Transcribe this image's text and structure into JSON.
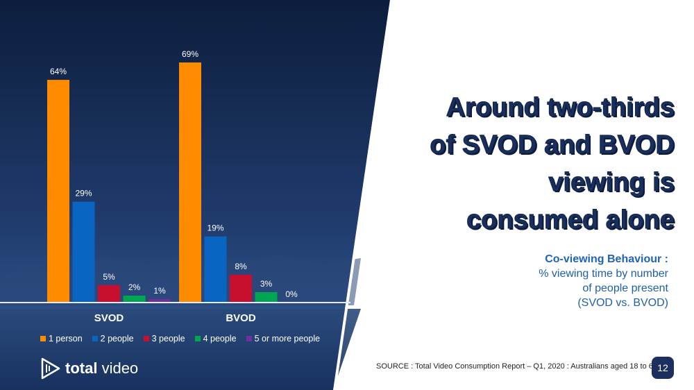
{
  "headline": {
    "lines": [
      "Around two-thirds",
      "of SVOD and BVOD",
      "viewing is",
      "consumed alone"
    ]
  },
  "subtitle": {
    "heading": "Co-viewing Behaviour :",
    "lines": [
      "% viewing time by number",
      "of people present",
      "(SVOD vs. BVOD)"
    ]
  },
  "source": "SOURCE : Total Video Consumption Report – Q1, 2020 :  Australians aged 18 to 69.",
  "page_number": "12",
  "logo": {
    "bold": "total",
    "regular": " video",
    "icon": "play-arrow-icon"
  },
  "colors": {
    "orange": "#ff8c00",
    "blue": "#0a64c2",
    "red": "#c8102e",
    "green": "#00a651",
    "purple": "#7030a0",
    "headline": "#1a2f5c",
    "subtitle": "#1f63b5"
  },
  "chart_data": {
    "type": "bar",
    "categories": [
      "SVOD",
      "BVOD"
    ],
    "series": [
      {
        "name": "1 person",
        "color": "#ff8c00",
        "values": [
          64,
          69
        ]
      },
      {
        "name": "2 people",
        "color": "#0a64c2",
        "values": [
          29,
          19
        ]
      },
      {
        "name": "3 people",
        "color": "#c8102e",
        "values": [
          5,
          8
        ]
      },
      {
        "name": "4 people",
        "color": "#00a651",
        "values": [
          2,
          3
        ]
      },
      {
        "name": "5 or more people",
        "color": "#7030a0",
        "values": [
          1,
          0
        ]
      }
    ],
    "value_suffix": "%",
    "ylim": [
      0,
      70
    ],
    "legend_position": "bottom",
    "grid": false
  }
}
